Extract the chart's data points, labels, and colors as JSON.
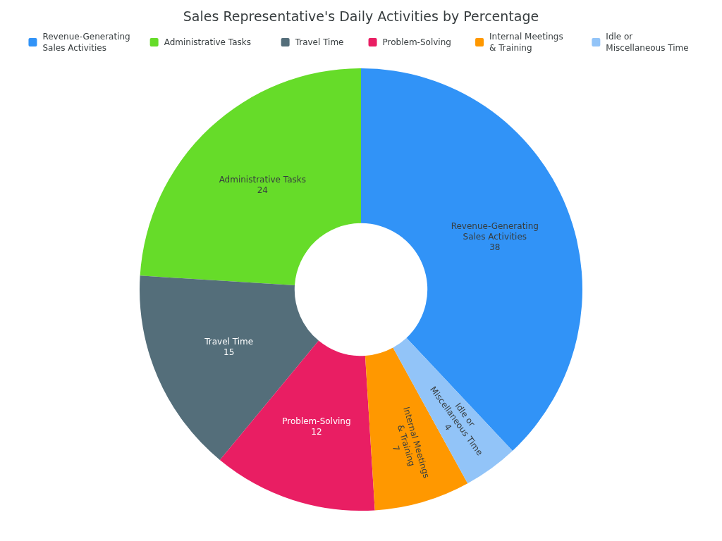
{
  "chart_data": {
    "type": "donut",
    "title": "Sales Representative's Daily Activities by Percentage",
    "categories": [
      "Revenue-Generating\nSales Activities",
      "Administrative Tasks",
      "Travel Time",
      "Problem-Solving",
      "Internal Meetings\n& Training",
      "Idle or\nMiscellaneous Time"
    ],
    "values": [
      38,
      24,
      15,
      12,
      7,
      4
    ],
    "colors": [
      "#3193f7",
      "#66dc29",
      "#546e7a",
      "#e91e63",
      "#ff9800",
      "#92c4f8"
    ],
    "legend": "top",
    "data_labels": true
  }
}
